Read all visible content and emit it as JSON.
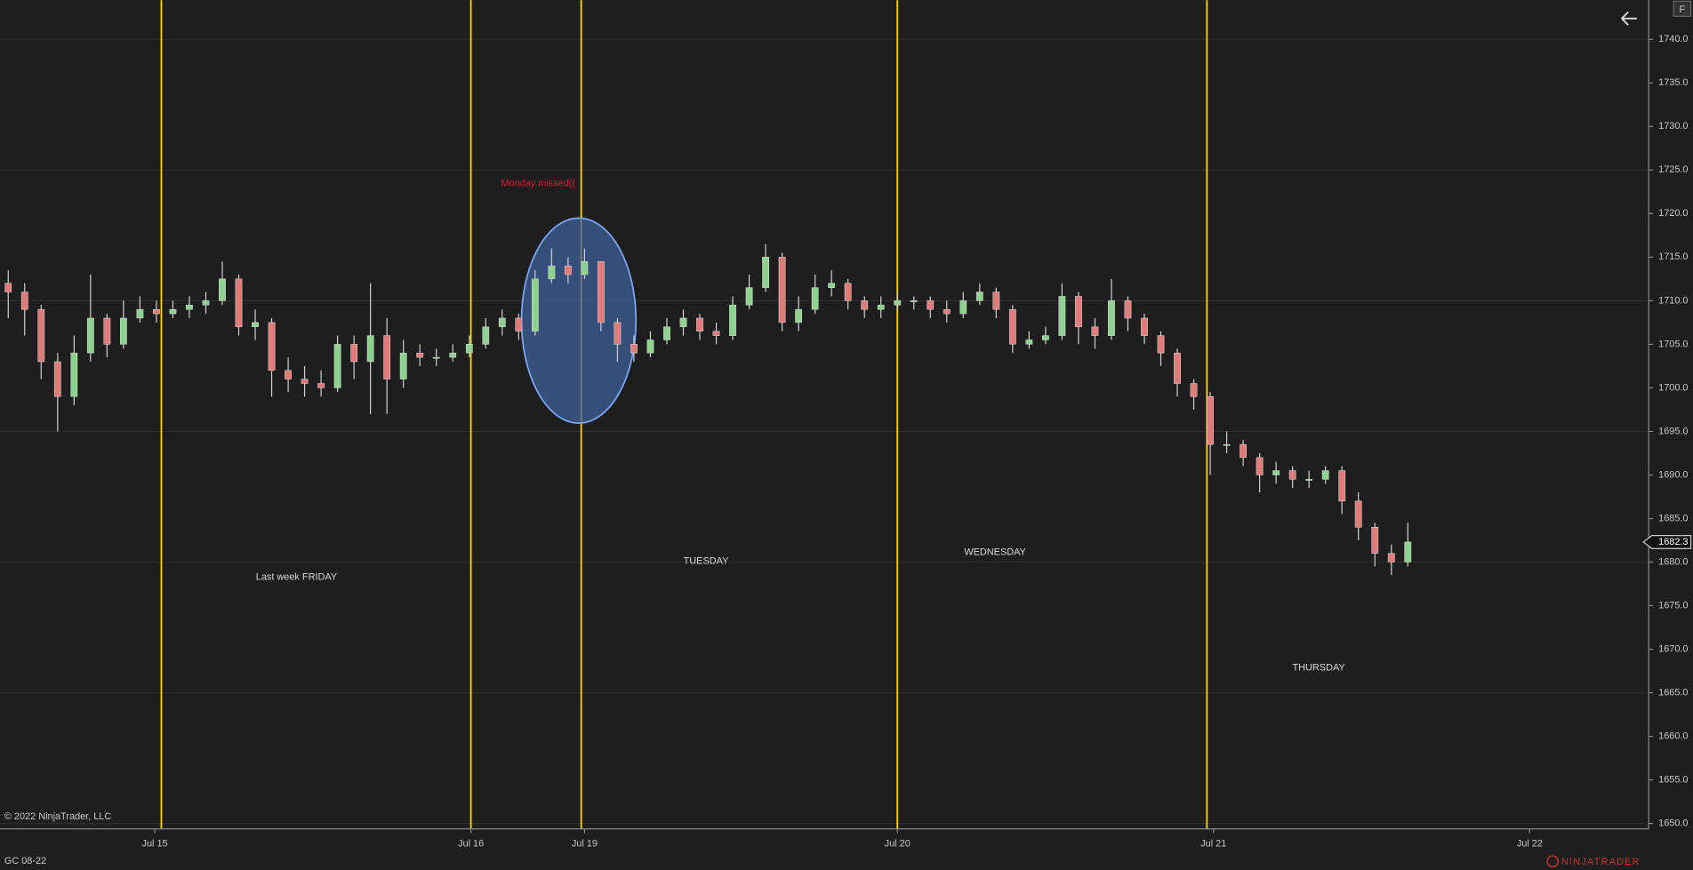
{
  "chart_data": {
    "type": "candlestick",
    "instrument": "GC 08-22",
    "copyright": "© 2022 NinjaTrader, LLC",
    "brand": "NINJATRADER",
    "corner_label": "F",
    "x": [
      0.5,
      1.5,
      2.5,
      3.5,
      4.5,
      5.5,
      6.5,
      7.5,
      8.5,
      9.5,
      10.5,
      11.5,
      12.5,
      13.5,
      14.5,
      15.5,
      16.5,
      17.5,
      18.5,
      19.5,
      20.5,
      21.5,
      22.5,
      23.5,
      24.5,
      25.5,
      26.5,
      27.5,
      28.5,
      29.5,
      30.5,
      31.5,
      32.5,
      33.5,
      34.5,
      35.5,
      36.5,
      37.5,
      38.5,
      39.5,
      40.5,
      41.5,
      42.5,
      43.5,
      44.5,
      45.5,
      46.5,
      47.5,
      48.5,
      49.5,
      50.5,
      51.5,
      52.5,
      53.5,
      54.5,
      55.5,
      56.5,
      57.5,
      58.5,
      59.5,
      60.5,
      61.5,
      62.5,
      63.5,
      64.5,
      65.5,
      66.5,
      67.5,
      68.5,
      69.5,
      70.5,
      71.5,
      72.5,
      73.5,
      74.5,
      75.5,
      76.5,
      77.5,
      78.5,
      79.5,
      80.5,
      81.5,
      82.5,
      83.5,
      84.5,
      85.5
    ],
    "open": [
      1712,
      1711,
      1709,
      1703,
      1699,
      1704,
      1708,
      1705,
      1708,
      1709,
      1708.5,
      1709,
      1709.5,
      1710,
      1712.5,
      1707,
      1707.5,
      1702,
      1701,
      1700.5,
      1700,
      1705,
      1703,
      1706,
      1701,
      1704,
      1703.5,
      1703.5,
      1704,
      1705,
      1707,
      1708,
      1706.5,
      1712.5,
      1714,
      1713,
      1714.5,
      1707.5,
      1705,
      1704,
      1705.5,
      1707,
      1708,
      1706.5,
      1706,
      1709.5,
      1711.5,
      1715,
      1707.5,
      1709,
      1711.5,
      1712,
      1710,
      1709,
      1709.5,
      1710,
      1710,
      1709,
      1708.5,
      1710,
      1711,
      1709,
      1705,
      1705.5,
      1706,
      1710.5,
      1707,
      1706,
      1710,
      1708,
      1706,
      1704,
      1700.5,
      1699,
      1693.5,
      1693.5,
      1692,
      1690,
      1690.5,
      1689.5,
      1689.5,
      1690.5,
      1687,
      1684,
      1681,
      1680
    ],
    "high": [
      1713.5,
      1712,
      1709.5,
      1704,
      1706,
      1713,
      1708.5,
      1710,
      1710.5,
      1710,
      1710,
      1710.5,
      1711,
      1714.5,
      1713,
      1709,
      1708,
      1703.5,
      1702.5,
      1702,
      1706,
      1706,
      1712,
      1708,
      1705.5,
      1705,
      1704.5,
      1705,
      1706,
      1708,
      1709,
      1708.5,
      1713.5,
      1716,
      1715,
      1716,
      1714.5,
      1708,
      1706,
      1706.5,
      1708,
      1709,
      1708.5,
      1707.5,
      1710.5,
      1713,
      1716.5,
      1715.5,
      1710.5,
      1713,
      1713.5,
      1712.5,
      1710.5,
      1710.5,
      1711,
      1710.5,
      1710.5,
      1710,
      1711,
      1712,
      1711.5,
      1709.5,
      1706.5,
      1707,
      1712,
      1711,
      1708,
      1712.5,
      1710.5,
      1708.5,
      1706.5,
      1704.5,
      1701,
      1699.5,
      1695,
      1694,
      1692.5,
      1691.5,
      1691,
      1690.5,
      1691,
      1691,
      1688,
      1684.5,
      1682,
      1684.5
    ],
    "low": [
      1708,
      1706,
      1701,
      1695,
      1698,
      1703,
      1703.5,
      1704.5,
      1707.5,
      1707.5,
      1708,
      1708,
      1708.5,
      1709.5,
      1706,
      1705.5,
      1699,
      1699.5,
      1699,
      1699,
      1699.5,
      1701,
      1697,
      1697,
      1700,
      1702.5,
      1702.5,
      1703,
      1703.5,
      1704.5,
      1706,
      1705.5,
      1706,
      1712,
      1712,
      1712.5,
      1706.5,
      1703,
      1703,
      1703.5,
      1705,
      1706,
      1705.5,
      1705,
      1705.5,
      1709,
      1711,
      1706.5,
      1706.5,
      1708.5,
      1710.5,
      1709,
      1708,
      1708,
      1709,
      1709,
      1708,
      1707.5,
      1708,
      1709.5,
      1708,
      1704,
      1704.5,
      1705,
      1705.5,
      1705,
      1704.5,
      1705.5,
      1706.5,
      1705,
      1702.5,
      1699,
      1697.5,
      1690,
      1692.5,
      1691,
      1688,
      1689,
      1688.5,
      1688.5,
      1689,
      1685.5,
      1682.5,
      1679.5,
      1678.5,
      1679.5
    ],
    "close": [
      1711,
      1709,
      1703,
      1699,
      1704,
      1708,
      1705,
      1708,
      1709,
      1708.5,
      1709,
      1709.5,
      1710,
      1712.5,
      1707,
      1707.5,
      1702,
      1701,
      1700.5,
      1700,
      1705,
      1703,
      1706,
      1701,
      1704,
      1703.5,
      1703.5,
      1704,
      1705,
      1707,
      1708,
      1706.5,
      1712.5,
      1714,
      1713,
      1714.5,
      1707.5,
      1705,
      1704,
      1705.5,
      1707,
      1708,
      1706.5,
      1706,
      1709.5,
      1711.5,
      1715,
      1707.5,
      1709,
      1711.5,
      1712,
      1710,
      1709,
      1709.5,
      1710,
      1710,
      1709,
      1708.5,
      1710,
      1711,
      1709,
      1705,
      1705.5,
      1706,
      1710.5,
      1707,
      1706,
      1710,
      1708,
      1706,
      1704,
      1700.5,
      1699,
      1693.5,
      1693.5,
      1692,
      1690,
      1690.5,
      1689.5,
      1689.5,
      1690.5,
      1687,
      1684,
      1681,
      1680,
      1682.3
    ],
    "up_color": "#8fd18f",
    "down_color": "#e07b7b",
    "wick_color": "#d0d0d0",
    "xlim": [
      0,
      100
    ],
    "xticks": [
      {
        "value": 9.4,
        "label": "Jul 15"
      },
      {
        "value": 28.6,
        "label": "Jul 16"
      },
      {
        "value": 35.5,
        "label": "Jul 19"
      },
      {
        "value": 54.5,
        "label": "Jul 20"
      },
      {
        "value": 73.7,
        "label": "Jul 21"
      },
      {
        "value": 92.9,
        "label": "Jul 22"
      }
    ],
    "ylim": [
      1649.5,
      1744.5
    ],
    "yticks": [
      {
        "value": 1650,
        "label": "1650.0"
      },
      {
        "value": 1655,
        "label": "1655.0"
      },
      {
        "value": 1660,
        "label": "1660.0"
      },
      {
        "value": 1665,
        "label": "1665.0"
      },
      {
        "value": 1670,
        "label": "1670.0"
      },
      {
        "value": 1675,
        "label": "1675.0"
      },
      {
        "value": 1680,
        "label": "1680.0"
      },
      {
        "value": 1685,
        "label": "1685.0"
      },
      {
        "value": 1690,
        "label": "1690.0"
      },
      {
        "value": 1695,
        "label": "1695.0"
      },
      {
        "value": 1700,
        "label": "1700.0"
      },
      {
        "value": 1705,
        "label": "1705.0"
      },
      {
        "value": 1710,
        "label": "1710.0"
      },
      {
        "value": 1715,
        "label": "1715.0"
      },
      {
        "value": 1720,
        "label": "1720.0"
      },
      {
        "value": 1725,
        "label": "1725.0"
      },
      {
        "value": 1730,
        "label": "1730.0"
      },
      {
        "value": 1735,
        "label": "1735.0"
      },
      {
        "value": 1740,
        "label": "1740.0"
      }
    ],
    "ygrid": [
      1650,
      1665,
      1680,
      1695,
      1710,
      1725,
      1740
    ],
    "vlines": [
      9.8,
      28.6,
      35.3,
      54.5,
      73.3
    ],
    "vline_color": "#ffd700",
    "annotations": [
      {
        "text": "Monday missed((",
        "color": "#dc143c"
      },
      {
        "text": "Last week FRIDAY",
        "color": "#d8d8d8"
      },
      {
        "text": "TUESDAY",
        "color": "#d8d8d8"
      },
      {
        "text": "WEDNESDAY",
        "color": "#d8d8d8"
      },
      {
        "text": "THURSDAY",
        "color": "#d8d8d8"
      }
    ]
  }
}
